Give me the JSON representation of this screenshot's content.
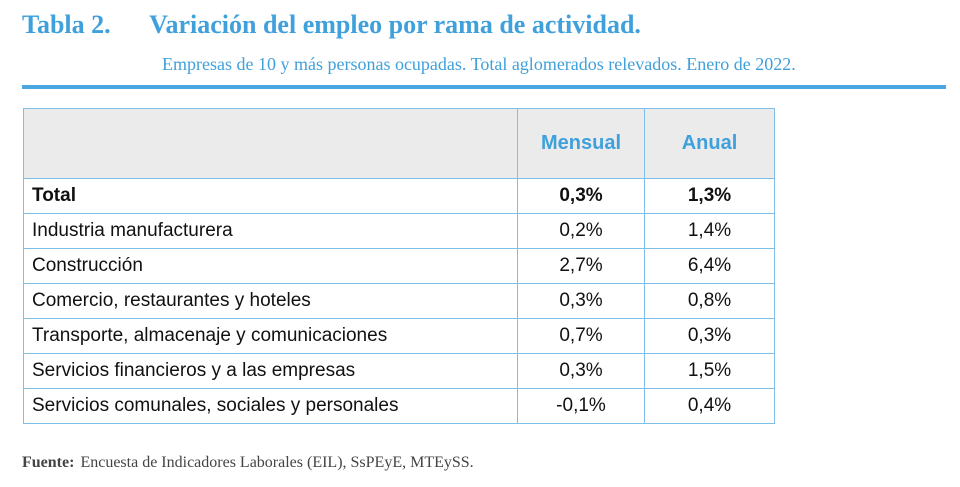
{
  "title": {
    "number": "Tabla 2.",
    "text": "Variación del empleo por rama de actividad."
  },
  "subtitle": "Empresas de 10 y más personas ocupadas. Total aglomerados relevados. Enero de 2022.",
  "table": {
    "headers": [
      "",
      "Mensual",
      "Anual"
    ],
    "rows": [
      {
        "label": "Total",
        "mensual": "0,3%",
        "anual": "1,3%"
      },
      {
        "label": "Industria manufacturera",
        "mensual": "0,2%",
        "anual": "1,4%"
      },
      {
        "label": "Construcción",
        "mensual": "2,7%",
        "anual": "6,4%"
      },
      {
        "label": "Comercio, restaurantes y hoteles",
        "mensual": "0,3%",
        "anual": "0,8%"
      },
      {
        "label": "Transporte, almacenaje y comunicaciones",
        "mensual": "0,7%",
        "anual": "0,3%"
      },
      {
        "label": "Servicios financieros y a las empresas",
        "mensual": "0,3%",
        "anual": "1,5%"
      },
      {
        "label": "Servicios comunales, sociales y personales",
        "mensual": "-0,1%",
        "anual": "0,4%"
      }
    ]
  },
  "source": {
    "label": "Fuente:",
    "text": "Encuesta de Indicadores Laborales (EIL), SsPEyE, MTEySS."
  },
  "colors": {
    "accent": "#3fa0db",
    "header_bg": "#ebebeb",
    "border": "#7fc0ea"
  }
}
